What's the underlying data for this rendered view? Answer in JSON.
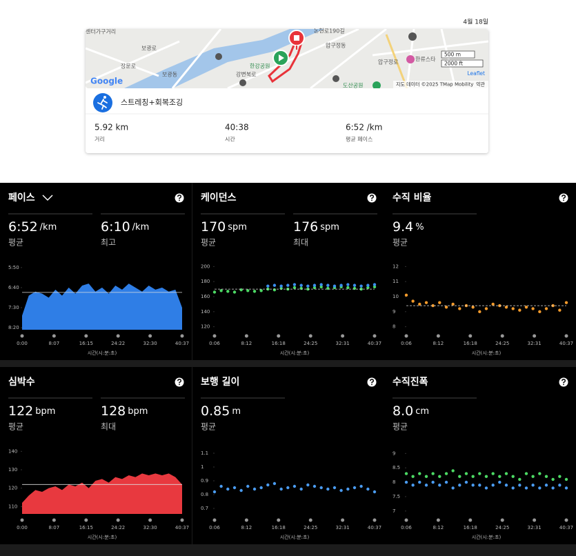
{
  "date": "4월 18일",
  "map": {
    "labels": [
      "센터가구거리",
      "보광로",
      "장문로",
      "보광동",
      "한강공원",
      "강변북로",
      "논현로190길",
      "압구정동",
      "압구정로",
      "한류스타",
      "도산공원"
    ],
    "google": "Google",
    "scale": [
      "500 m",
      "2000 ft"
    ],
    "leaflet": "Leaflet",
    "attribution": "지도 데이터 ©2025 TMap Mobility",
    "terms": "약관"
  },
  "activity": {
    "name": "스트레칭+회복조깅",
    "stats": [
      {
        "value": "5.92 km",
        "label": "거리"
      },
      {
        "value": "40:38",
        "label": "시간"
      },
      {
        "value": "6:52 /km",
        "label": "평균 페이스"
      }
    ]
  },
  "x_axis_label": "시간(시:분:초)",
  "panels": [
    {
      "title": "페이스",
      "metrics": [
        {
          "value": "6:52",
          "unit": "/km",
          "label": "평균"
        },
        {
          "value": "6:10",
          "unit": "/km",
          "label": "최고"
        }
      ],
      "chart": {
        "type": "area",
        "color": "#2f7ee6",
        "ylim": [
          505,
          340
        ],
        "yticks": [
          {
            "value": 350,
            "label": "5:50"
          },
          {
            "value": 400,
            "label": "6:40"
          },
          {
            "value": 450,
            "label": "7:30"
          },
          {
            "value": 500,
            "label": "8:20"
          }
        ],
        "xlim": [
          0,
          2437
        ],
        "xticks": [
          {
            "value": 0,
            "label": "0:00"
          },
          {
            "value": 487,
            "label": "8:07"
          },
          {
            "value": 975,
            "label": "16:15"
          },
          {
            "value": 1462,
            "label": "24:22"
          },
          {
            "value": 1950,
            "label": "32:30"
          },
          {
            "value": 2437,
            "label": "40:37"
          }
        ],
        "reference": 412,
        "x": [
          0,
          102,
          203,
          305,
          406,
          508,
          609,
          711,
          812,
          914,
          1015,
          1117,
          1218,
          1320,
          1421,
          1523,
          1625,
          1726,
          1828,
          1929,
          2031,
          2132,
          2234,
          2335,
          2437
        ],
        "series": [
          {
            "color": "#2f7ee6",
            "values": [
              470,
              420,
              410,
              415,
              425,
              405,
              420,
              400,
              415,
              395,
              390,
              410,
              400,
              415,
              395,
              405,
              390,
              400,
              410,
              395,
              405,
              400,
              410,
              405,
              450
            ]
          }
        ]
      }
    },
    {
      "title": "케이던스",
      "metrics": [
        {
          "value": "170",
          "unit": "spm",
          "label": "평균"
        },
        {
          "value": "176",
          "unit": "spm",
          "label": "최대"
        }
      ],
      "chart": {
        "type": "scatter",
        "ylim": [
          116,
          204
        ],
        "yticks": [
          120,
          140,
          160,
          180,
          200
        ],
        "xlim": [
          6,
          2437
        ],
        "xticks": [
          {
            "value": 6,
            "label": "0:06"
          },
          {
            "value": 492,
            "label": "8:12"
          },
          {
            "value": 978,
            "label": "16:18"
          },
          {
            "value": 1465,
            "label": "24:25"
          },
          {
            "value": 1951,
            "label": "32:31"
          },
          {
            "value": 2437,
            "label": "40:37"
          }
        ],
        "reference": 170,
        "x": [
          6,
          107,
          208,
          310,
          411,
          512,
          614,
          715,
          816,
          917,
          1019,
          1120,
          1221,
          1323,
          1424,
          1525,
          1627,
          1728,
          1829,
          1930,
          2032,
          2133,
          2234,
          2336,
          2437
        ],
        "series": [
          {
            "color": "#4cd964",
            "values": [
              166,
              168,
              167,
              166,
              169,
              168,
              167,
              168,
              170,
              169,
              171,
              170,
              172,
              171,
              170,
              172,
              173,
              171,
              172,
              173,
              172,
              171,
              170,
              172,
              173
            ]
          },
          {
            "color": "#3b8ff0",
            "values": [
              null,
              null,
              null,
              null,
              null,
              null,
              null,
              null,
              174,
              175,
              174,
              175,
              176,
              175,
              174,
              175,
              176,
              175,
              174,
              175,
              176,
              175,
              174,
              175,
              176
            ]
          }
        ]
      }
    },
    {
      "title": "수직 비율",
      "metrics": [
        {
          "value": "9.4",
          "unit": "%",
          "label": "평균"
        }
      ],
      "chart": {
        "type": "scatter",
        "ylim": [
          7.8,
          12.2
        ],
        "yticks": [
          8,
          9,
          10,
          11,
          12
        ],
        "xlim": [
          6,
          2437
        ],
        "xticks": [
          {
            "value": 6,
            "label": "0:06"
          },
          {
            "value": 492,
            "label": "8:12"
          },
          {
            "value": 978,
            "label": "16:18"
          },
          {
            "value": 1465,
            "label": "24:25"
          },
          {
            "value": 1951,
            "label": "32:31"
          },
          {
            "value": 2437,
            "label": "40:37"
          }
        ],
        "reference": 9.4,
        "x": [
          6,
          107,
          208,
          310,
          411,
          512,
          614,
          715,
          816,
          917,
          1019,
          1120,
          1221,
          1323,
          1424,
          1525,
          1627,
          1728,
          1829,
          1930,
          2032,
          2133,
          2234,
          2336,
          2437
        ],
        "series": [
          {
            "color": "#f39a2b",
            "values": [
              10.1,
              9.7,
              9.5,
              9.6,
              9.4,
              9.6,
              9.3,
              9.5,
              9.2,
              9.4,
              9.3,
              9.0,
              9.2,
              9.5,
              9.4,
              9.3,
              9.2,
              9.1,
              9.3,
              9.2,
              9.0,
              9.2,
              9.4,
              9.1,
              9.6
            ]
          }
        ]
      }
    },
    {
      "title": "심박수",
      "metrics": [
        {
          "value": "122",
          "unit": "bpm",
          "label": "평균"
        },
        {
          "value": "128",
          "unit": "bpm",
          "label": "최대"
        }
      ],
      "chart": {
        "type": "area",
        "color": "#e8393f",
        "ylim": [
          106,
          142
        ],
        "yticks": [
          110,
          120,
          130,
          140
        ],
        "xlim": [
          0,
          2437
        ],
        "xticks": [
          {
            "value": 0,
            "label": "0:00"
          },
          {
            "value": 487,
            "label": "8:07"
          },
          {
            "value": 975,
            "label": "16:15"
          },
          {
            "value": 1462,
            "label": "24:22"
          },
          {
            "value": 1950,
            "label": "32:30"
          },
          {
            "value": 2437,
            "label": "40:37"
          }
        ],
        "reference": 122,
        "x": [
          0,
          102,
          203,
          305,
          406,
          508,
          609,
          711,
          812,
          914,
          1015,
          1117,
          1218,
          1320,
          1421,
          1523,
          1625,
          1726,
          1828,
          1929,
          2031,
          2132,
          2234,
          2335,
          2437
        ],
        "series": [
          {
            "color": "#e8393f",
            "values": [
              112,
              116,
              119,
              118,
              120,
              121,
              119,
              122,
              121,
              123,
              120,
              124,
              125,
              123,
              126,
              125,
              127,
              126,
              128,
              127,
              128,
              127,
              128,
              126,
              122
            ]
          }
        ]
      }
    },
    {
      "title": "보행 길이",
      "metrics": [
        {
          "value": "0.85",
          "unit": "m",
          "label": "평균"
        }
      ],
      "chart": {
        "type": "scatter",
        "ylim": [
          0.66,
          1.14
        ],
        "yticks": [
          0.7,
          0.8,
          0.9,
          1,
          1.1
        ],
        "xlim": [
          6,
          2437
        ],
        "xticks": [
          {
            "value": 6,
            "label": "0:06"
          },
          {
            "value": 492,
            "label": "8:12"
          },
          {
            "value": 978,
            "label": "16:18"
          },
          {
            "value": 1465,
            "label": "24:25"
          },
          {
            "value": 1951,
            "label": "32:31"
          },
          {
            "value": 2437,
            "label": "40:37"
          }
        ],
        "x": [
          6,
          107,
          208,
          310,
          411,
          512,
          614,
          715,
          816,
          917,
          1019,
          1120,
          1221,
          1323,
          1424,
          1525,
          1627,
          1728,
          1829,
          1930,
          2032,
          2133,
          2234,
          2336,
          2437
        ],
        "series": [
          {
            "color": "#4a9bf0",
            "values": [
              0.82,
              0.86,
              0.84,
              0.85,
              0.83,
              0.86,
              0.84,
              0.85,
              0.87,
              0.88,
              0.84,
              0.85,
              0.86,
              0.84,
              0.87,
              0.86,
              0.85,
              0.84,
              0.85,
              0.83,
              0.84,
              0.85,
              0.86,
              0.84,
              0.82
            ]
          }
        ]
      }
    },
    {
      "title": "수직진폭",
      "metrics": [
        {
          "value": "8.0",
          "unit": "cm",
          "label": "평균"
        }
      ],
      "chart": {
        "type": "scatter",
        "ylim": [
          6.9,
          9.2
        ],
        "yticks": [
          7,
          7.5,
          8,
          8.5,
          9
        ],
        "xlim": [
          6,
          2437
        ],
        "xticks": [
          {
            "value": 6,
            "label": "0:06"
          },
          {
            "value": 492,
            "label": "8:12"
          },
          {
            "value": 978,
            "label": "16:18"
          },
          {
            "value": 1465,
            "label": "24:25"
          },
          {
            "value": 1951,
            "label": "32:31"
          },
          {
            "value": 2437,
            "label": "40:37"
          }
        ],
        "x": [
          6,
          107,
          208,
          310,
          411,
          512,
          614,
          715,
          816,
          917,
          1019,
          1120,
          1221,
          1323,
          1424,
          1525,
          1627,
          1728,
          1829,
          1930,
          2032,
          2133,
          2234,
          2336,
          2437
        ],
        "series": [
          {
            "color": "#4cd964",
            "values": [
              8.3,
              8.2,
              8.3,
              8.2,
              8.3,
              8.2,
              8.3,
              8.4,
              8.2,
              8.3,
              8.2,
              8.3,
              8.2,
              8.3,
              8.2,
              8.3,
              8.2,
              8.1,
              8.3,
              8.2,
              8.3,
              8.2,
              8.1,
              8.2,
              8.1
            ]
          },
          {
            "color": "#4a9bf0",
            "values": [
              8.0,
              7.9,
              8.0,
              7.9,
              8.0,
              7.9,
              8.0,
              7.8,
              7.9,
              8.0,
              7.9,
              7.9,
              7.8,
              7.9,
              8.0,
              7.9,
              7.8,
              7.9,
              7.8,
              7.9,
              7.8,
              7.9,
              7.8,
              7.9,
              7.8
            ]
          }
        ]
      }
    }
  ]
}
